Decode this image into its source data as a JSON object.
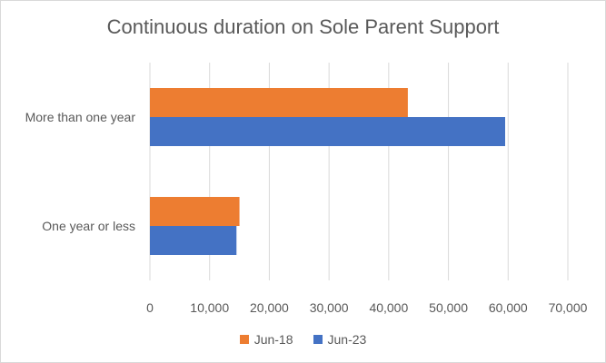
{
  "chart_data": {
    "type": "bar",
    "orientation": "horizontal",
    "title": "Continuous duration on Sole Parent Support",
    "categories": [
      "More than one year",
      "One year or less"
    ],
    "series": [
      {
        "name": "Jun-18",
        "color": "#ed7d31",
        "values": [
          43200,
          15000
        ]
      },
      {
        "name": "Jun-23",
        "color": "#4472c4",
        "values": [
          59500,
          14500
        ]
      }
    ],
    "xlim": [
      0,
      70000
    ],
    "x_ticks": [
      0,
      10000,
      20000,
      30000,
      40000,
      50000,
      60000,
      70000
    ],
    "x_tick_labels": [
      "0",
      "10,000",
      "20,000",
      "30,000",
      "40,000",
      "50,000",
      "60,000",
      "70,000"
    ],
    "grid": "vertical",
    "legend": "bottom"
  }
}
